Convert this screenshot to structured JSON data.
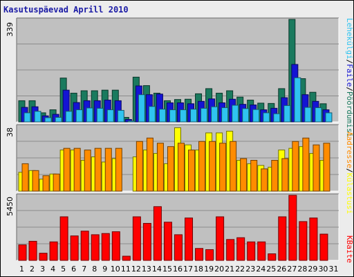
{
  "title": "Kasutuspäevad Aprill 2010",
  "colors": {
    "background": "#ececec",
    "panel": "#c0c0c0",
    "kulastused": "#1a7a5e",
    "lehekulgi": "#1414d4",
    "failid": "#2fc4f0",
    "kulastajad": "#ff8c00",
    "kulastused_unikaalsed": "#ffff00",
    "kbaite": "#ff0000",
    "weekend_text": "#167a4e",
    "title_text": "#1a1aa5"
  },
  "chart_data": [
    {
      "type": "bar",
      "panel": "top",
      "ymax_label": "339",
      "ylim": [
        0,
        339
      ],
      "categories": [
        "1",
        "2",
        "3",
        "4",
        "5",
        "6",
        "7",
        "8",
        "9",
        "10",
        "11",
        "12",
        "13",
        "14",
        "15",
        "16",
        "17",
        "18",
        "19",
        "20",
        "21",
        "22",
        "23",
        "24",
        "25",
        "26",
        "27",
        "28",
        "29",
        "30",
        "31"
      ],
      "series": [
        {
          "name": "Pöördumisi",
          "color_key": "kulastused",
          "values": [
            70,
            70,
            30,
            40,
            145,
            95,
            103,
            103,
            105,
            105,
            15,
            148,
            120,
            95,
            70,
            74,
            75,
            93,
            110,
            95,
            103,
            82,
            72,
            62,
            61,
            110,
            339,
            143,
            98,
            60,
            0
          ]
        },
        {
          "name": "Faile",
          "color_key": "lehekulgi",
          "values": [
            48,
            50,
            20,
            25,
            105,
            64,
            70,
            70,
            72,
            70,
            8,
            119,
            90,
            92,
            63,
            63,
            60,
            68,
            76,
            63,
            75,
            58,
            56,
            40,
            45,
            80,
            190,
            90,
            68,
            40,
            0
          ]
        },
        {
          "name": "Lehekülgi",
          "color_key": "failid",
          "values": [
            30,
            35,
            14,
            15,
            35,
            40,
            46,
            45,
            40,
            38,
            3,
            90,
            51,
            42,
            40,
            40,
            42,
            45,
            50,
            47,
            55,
            44,
            41,
            30,
            27,
            54,
            146,
            48,
            47,
            30,
            0
          ]
        }
      ]
    },
    {
      "type": "bar",
      "panel": "middle",
      "ymax_label": "38",
      "ylim": [
        0,
        38
      ],
      "categories": [
        "1",
        "2",
        "3",
        "4",
        "5",
        "6",
        "7",
        "8",
        "9",
        "10",
        "11",
        "12",
        "13",
        "14",
        "15",
        "16",
        "17",
        "18",
        "19",
        "20",
        "21",
        "22",
        "23",
        "24",
        "25",
        "26",
        "27",
        "28",
        "29",
        "30",
        "31"
      ],
      "series": [
        {
          "name": "Külastusi",
          "color_key": "kulastused_unikaalsed",
          "values": [
            11,
            12,
            7,
            10,
            24,
            24,
            18,
            20,
            17,
            19,
            0,
            20,
            24,
            22,
            16,
            37,
            27,
            24,
            34,
            34,
            35,
            18,
            16,
            15,
            14,
            24,
            25,
            26,
            22,
            18,
            0
          ]
        },
        {
          "name": "Aadresse",
          "color_key": "kulastajad",
          "values": [
            16,
            12,
            9,
            10,
            25,
            25,
            24,
            25,
            25,
            25,
            0,
            29,
            31,
            28,
            26,
            28,
            24,
            29,
            29,
            28,
            29,
            19,
            18,
            13,
            18,
            19,
            29,
            31,
            27,
            28,
            0
          ]
        }
      ]
    },
    {
      "type": "bar",
      "panel": "bottom",
      "ymax_label": "5450",
      "ylim": [
        0,
        5450
      ],
      "categories": [
        "1",
        "2",
        "3",
        "4",
        "5",
        "6",
        "7",
        "8",
        "9",
        "10",
        "11",
        "12",
        "13",
        "14",
        "15",
        "16",
        "17",
        "18",
        "19",
        "20",
        "21",
        "22",
        "23",
        "24",
        "25",
        "26",
        "27",
        "28",
        "29",
        "30",
        "31"
      ],
      "series": [
        {
          "name": "KBaite",
          "color_key": "kbaite",
          "values": [
            1300,
            1600,
            600,
            1550,
            3650,
            2050,
            2450,
            2150,
            2250,
            2400,
            350,
            3650,
            3100,
            4500,
            3200,
            2150,
            3550,
            1000,
            900,
            3650,
            1750,
            1900,
            1550,
            1550,
            550,
            3650,
            5450,
            3250,
            3550,
            2200,
            0
          ]
        }
      ]
    }
  ],
  "x_labels": [
    {
      "text": "1",
      "weekend": false
    },
    {
      "text": "2",
      "weekend": false
    },
    {
      "text": "3",
      "weekend": true
    },
    {
      "text": "4",
      "weekend": true
    },
    {
      "text": "5",
      "weekend": false
    },
    {
      "text": "6",
      "weekend": false
    },
    {
      "text": "7",
      "weekend": false
    },
    {
      "text": "8",
      "weekend": false
    },
    {
      "text": "9",
      "weekend": false
    },
    {
      "text": "10",
      "weekend": true
    },
    {
      "text": "11",
      "weekend": true
    },
    {
      "text": "12",
      "weekend": false
    },
    {
      "text": "13",
      "weekend": false
    },
    {
      "text": "14",
      "weekend": false
    },
    {
      "text": "15",
      "weekend": false
    },
    {
      "text": "16",
      "weekend": false
    },
    {
      "text": "17",
      "weekend": true
    },
    {
      "text": "18",
      "weekend": true
    },
    {
      "text": "19",
      "weekend": false
    },
    {
      "text": "20",
      "weekend": false
    },
    {
      "text": "21",
      "weekend": false
    },
    {
      "text": "22",
      "weekend": false
    },
    {
      "text": "23",
      "weekend": false
    },
    {
      "text": "24",
      "weekend": true
    },
    {
      "text": "25",
      "weekend": true
    },
    {
      "text": "26",
      "weekend": false
    },
    {
      "text": "27",
      "weekend": false
    },
    {
      "text": "28",
      "weekend": false
    },
    {
      "text": "29",
      "weekend": false
    },
    {
      "text": "30",
      "weekend": false
    },
    {
      "text": "31",
      "weekend": true
    }
  ],
  "right_legend": {
    "top": [
      {
        "text": "Pöördumisi",
        "color_key": "kulastused"
      },
      {
        "text": "Faile",
        "color_key": "lehekulgi"
      },
      {
        "text": "Lehekülgi",
        "color_key": "failid"
      }
    ],
    "middle": [
      {
        "text": "Külastusi",
        "color_key": "kulastused_unikaalsed"
      },
      {
        "text": "Aadresse",
        "color_key": "kulastajad"
      }
    ],
    "bottom": [
      {
        "text": "KBaite",
        "color_key": "kbaite"
      }
    ]
  }
}
